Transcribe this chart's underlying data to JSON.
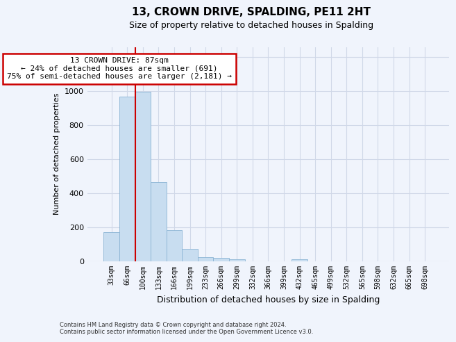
{
  "title": "13, CROWN DRIVE, SPALDING, PE11 2HT",
  "subtitle": "Size of property relative to detached houses in Spalding",
  "xlabel": "Distribution of detached houses by size in Spalding",
  "ylabel": "Number of detached properties",
  "bar_color": "#c8ddf0",
  "bar_edge_color": "#8ab4d4",
  "background_color": "#f0f4fc",
  "grid_color": "#d0d8e8",
  "categories": [
    "33sqm",
    "66sqm",
    "100sqm",
    "133sqm",
    "166sqm",
    "199sqm",
    "233sqm",
    "266sqm",
    "299sqm",
    "332sqm",
    "366sqm",
    "399sqm",
    "432sqm",
    "465sqm",
    "499sqm",
    "532sqm",
    "565sqm",
    "598sqm",
    "632sqm",
    "665sqm",
    "698sqm"
  ],
  "values": [
    170,
    968,
    998,
    465,
    185,
    75,
    25,
    20,
    12,
    0,
    0,
    0,
    13,
    0,
    0,
    0,
    0,
    0,
    0,
    0,
    0
  ],
  "ylim": [
    0,
    1260
  ],
  "yticks": [
    0,
    200,
    400,
    600,
    800,
    1000,
    1200
  ],
  "red_line_x": 1.5,
  "annotation_text": "13 CROWN DRIVE: 87sqm\n← 24% of detached houses are smaller (691)\n75% of semi-detached houses are larger (2,181) →",
  "footnote1": "Contains HM Land Registry data © Crown copyright and database right 2024.",
  "footnote2": "Contains public sector information licensed under the Open Government Licence v3.0.",
  "red_line_color": "#cc0000",
  "annotation_box_color": "#ffffff",
  "annotation_box_edge": "#cc0000"
}
